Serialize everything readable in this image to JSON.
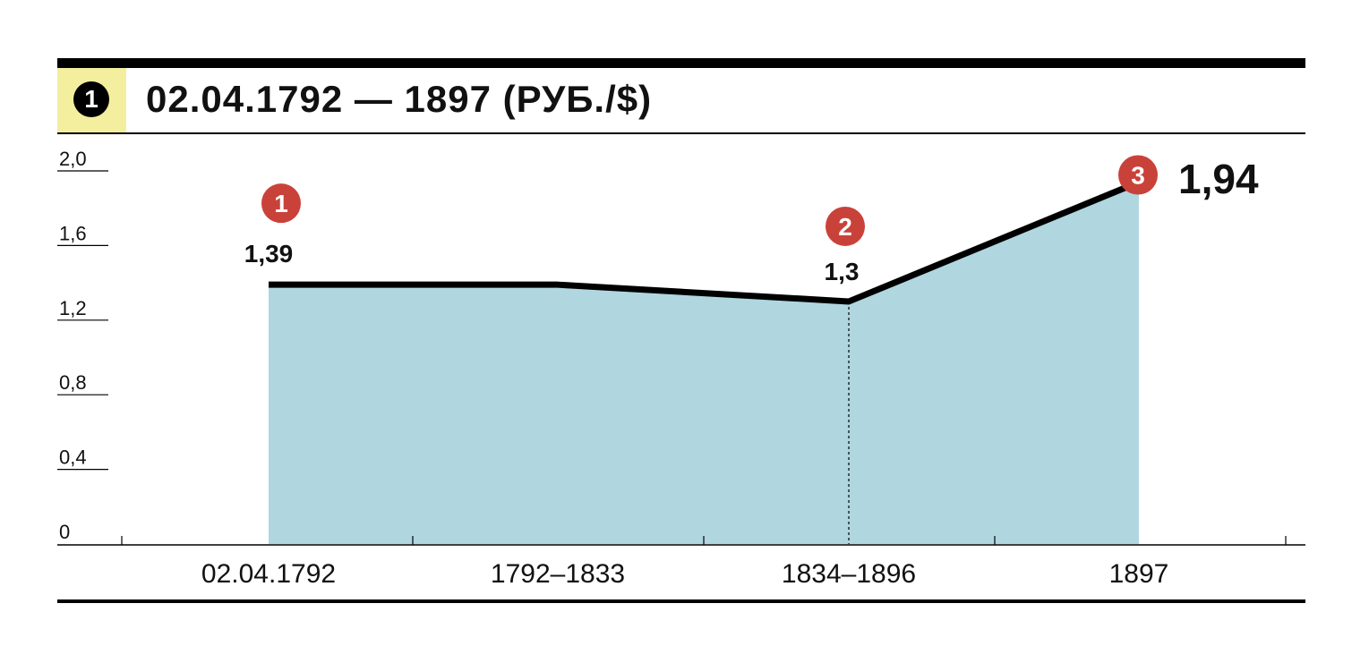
{
  "header": {
    "badge": "1",
    "title": "02.04.1792 — 1897 (РУБ./$)"
  },
  "colors": {
    "badge_bg": "#f3ef9e",
    "area_fill": "#b0d6e0",
    "line": "#000000",
    "marker": "#c9423a"
  },
  "chart_data": {
    "type": "area",
    "title": "02.04.1792 — 1897 (РУБ./$)",
    "categories": [
      "02.04.1792",
      "1792–1833",
      "1834–1896",
      "1897"
    ],
    "series": [
      {
        "values": [
          1.39,
          1.39,
          1.3,
          1.94
        ]
      }
    ],
    "ylim": [
      0,
      2.0
    ],
    "yticks": [
      0,
      0.4,
      0.8,
      1.2,
      1.6,
      2.0
    ],
    "ytick_labels": [
      "0",
      "0,4",
      "0,8",
      "1,2",
      "1,6",
      "2,0"
    ],
    "data_labels": [
      {
        "category": "02.04.1792",
        "label": "1,39",
        "marker": "1"
      },
      {
        "category": "1834–1896",
        "label": "1,3",
        "marker": "2"
      },
      {
        "category": "1897",
        "label": "1,94",
        "marker": "3"
      }
    ],
    "grid": false
  }
}
